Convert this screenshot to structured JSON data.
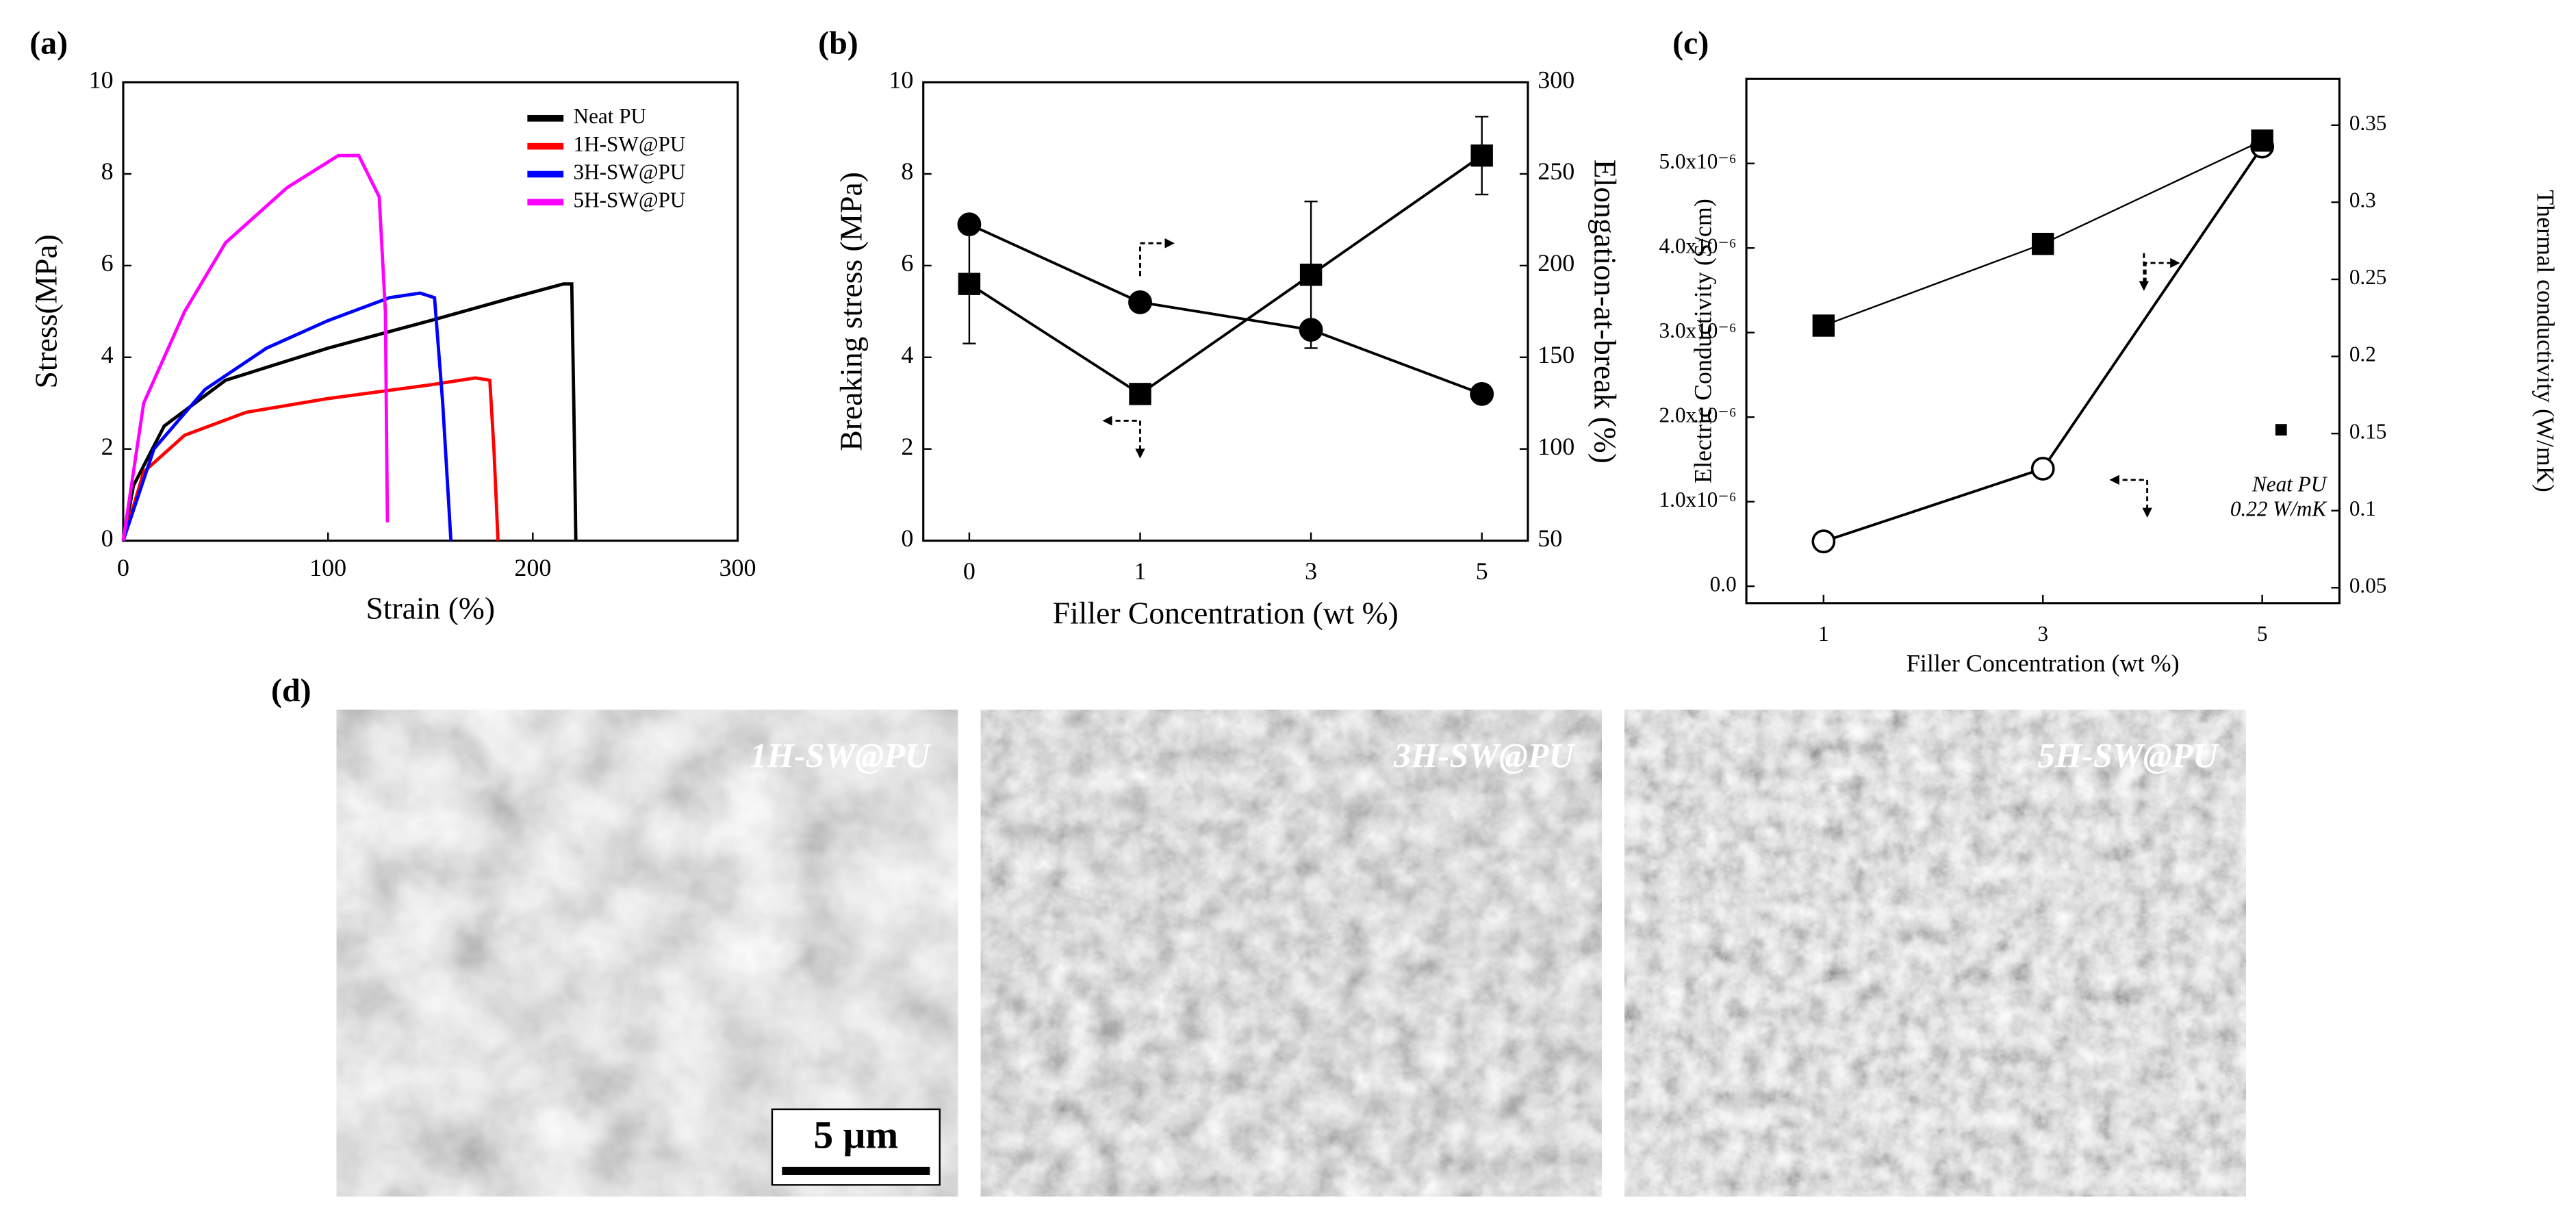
{
  "panel_labels": [
    "(a)",
    "(b)",
    "(c)",
    "(d)"
  ],
  "chart_data": [
    {
      "type": "line",
      "xlabel": "Strain (%)",
      "ylabel": "Stress(MPa)",
      "xlim": [
        0,
        300
      ],
      "xticks": [
        0,
        100,
        200,
        300
      ],
      "ylim": [
        0,
        10
      ],
      "yticks": [
        0,
        2,
        4,
        6,
        8,
        10
      ],
      "legend": "upper right",
      "series": [
        {
          "name": "Neat PU",
          "color": "#000000",
          "x": [
            0,
            5,
            20,
            50,
            100,
            150,
            190,
            215,
            219,
            220,
            221
          ],
          "values": [
            0,
            1.2,
            2.5,
            3.5,
            4.2,
            4.8,
            5.3,
            5.6,
            5.6,
            3,
            0
          ]
        },
        {
          "name": "1H-SW@PU",
          "color": "#ff0000",
          "x": [
            0,
            10,
            30,
            60,
            100,
            150,
            172,
            179,
            181,
            183
          ],
          "values": [
            0,
            1.5,
            2.3,
            2.8,
            3.1,
            3.4,
            3.55,
            3.5,
            2,
            0
          ]
        },
        {
          "name": "3H-SW@PU",
          "color": "#0000ff",
          "x": [
            0,
            15,
            40,
            70,
            100,
            130,
            145,
            152,
            156,
            160
          ],
          "values": [
            0,
            2,
            3.3,
            4.2,
            4.8,
            5.3,
            5.4,
            5.3,
            3,
            0
          ]
        },
        {
          "name": "5H-SW@PU",
          "color": "#ff00ff",
          "x": [
            0,
            10,
            30,
            50,
            80,
            105,
            115,
            125,
            128,
            129
          ],
          "values": [
            0,
            3,
            5,
            6.5,
            7.7,
            8.4,
            8.4,
            7.5,
            5,
            0.4
          ]
        }
      ]
    },
    {
      "type": "dual",
      "xlabel": "Filler Concentration (wt %)",
      "ylabel": "Breaking stress (MPa)",
      "y2label": "Elongation-at-break (%)",
      "categories": [
        "0",
        "1",
        "3",
        "5"
      ],
      "ylim": [
        0,
        10
      ],
      "yticks": [
        0,
        2,
        4,
        6,
        8,
        10
      ],
      "y2lim": [
        50,
        300
      ],
      "y2ticks": [
        50,
        100,
        150,
        200,
        250,
        300
      ],
      "series": [
        {
          "marker": "square",
          "filled": true,
          "color": "#000000",
          "values": [
            5.6,
            3.2,
            5.8,
            8.4
          ],
          "errors": [
            1.3,
            null,
            1.6,
            0.85
          ]
        },
        {
          "marker": "circle",
          "filled": true,
          "color": "#000000",
          "axis": "y2",
          "values": [
            222.5,
            180,
            165,
            130
          ]
        }
      ]
    },
    {
      "type": "dual",
      "xlabel": "Filler Concentration (wt %)",
      "ylabel": "Electric Conductivity (S/cm)",
      "y2label": "Thermal conductivity (W/mK)",
      "categories": [
        "1",
        "3",
        "5"
      ],
      "ylim": [
        -2e-07,
        6e-06
      ],
      "yticks": [
        {
          "value": 0,
          "label": "0.0"
        },
        {
          "value": 1e-06,
          "label": "1.0x10⁻⁶"
        },
        {
          "value": 2e-06,
          "label": "2.0x10⁻⁶"
        },
        {
          "value": 3e-06,
          "label": "3.0x10⁻⁶"
        },
        {
          "value": 4e-06,
          "label": "4.0x10⁻⁶"
        },
        {
          "value": 5e-06,
          "label": "5.0x10⁻⁶"
        }
      ],
      "y2lim": [
        0.04,
        0.38
      ],
      "y2ticks": [
        0.05,
        0.1,
        0.15,
        0.2,
        0.25,
        0.3,
        0.35
      ],
      "annotations": [
        "Neat PU",
        "0.22 W/mK"
      ],
      "series": [
        {
          "marker": "circle",
          "filled": false,
          "color": "#000000",
          "values": [
            5.3e-07,
            1.39e-06,
            5.2e-06
          ]
        },
        {
          "marker": "square",
          "filled": true,
          "color": "#000000",
          "axis": "y2",
          "values": [
            0.22,
            0.273,
            0.34
          ]
        }
      ]
    }
  ],
  "micrographs": [
    {
      "label": "1H-SW@PU"
    },
    {
      "label": "3H-SW@PU"
    },
    {
      "label": "5H-SW@PU"
    }
  ],
  "scale_bar": "5 μm"
}
